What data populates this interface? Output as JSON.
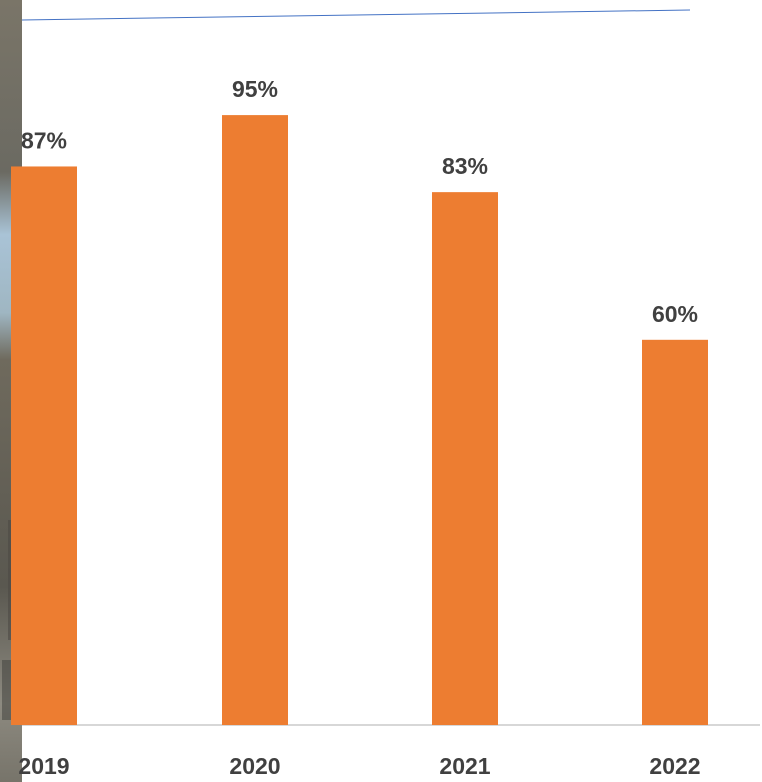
{
  "chart_data": {
    "type": "bar",
    "categories": [
      "2019",
      "2020",
      "2021",
      "2022"
    ],
    "values": [
      87,
      95,
      83,
      60
    ],
    "value_labels": [
      "87%",
      "95%",
      "83%",
      "60%"
    ],
    "title": "",
    "xlabel": "",
    "ylabel": "",
    "ylim": [
      0,
      100
    ],
    "grid": false,
    "legend": "none",
    "colors": {
      "bar": "#ED7D31",
      "label": "#404040",
      "axis": "#BFBFBF",
      "top_rule": "#4472C4"
    }
  }
}
